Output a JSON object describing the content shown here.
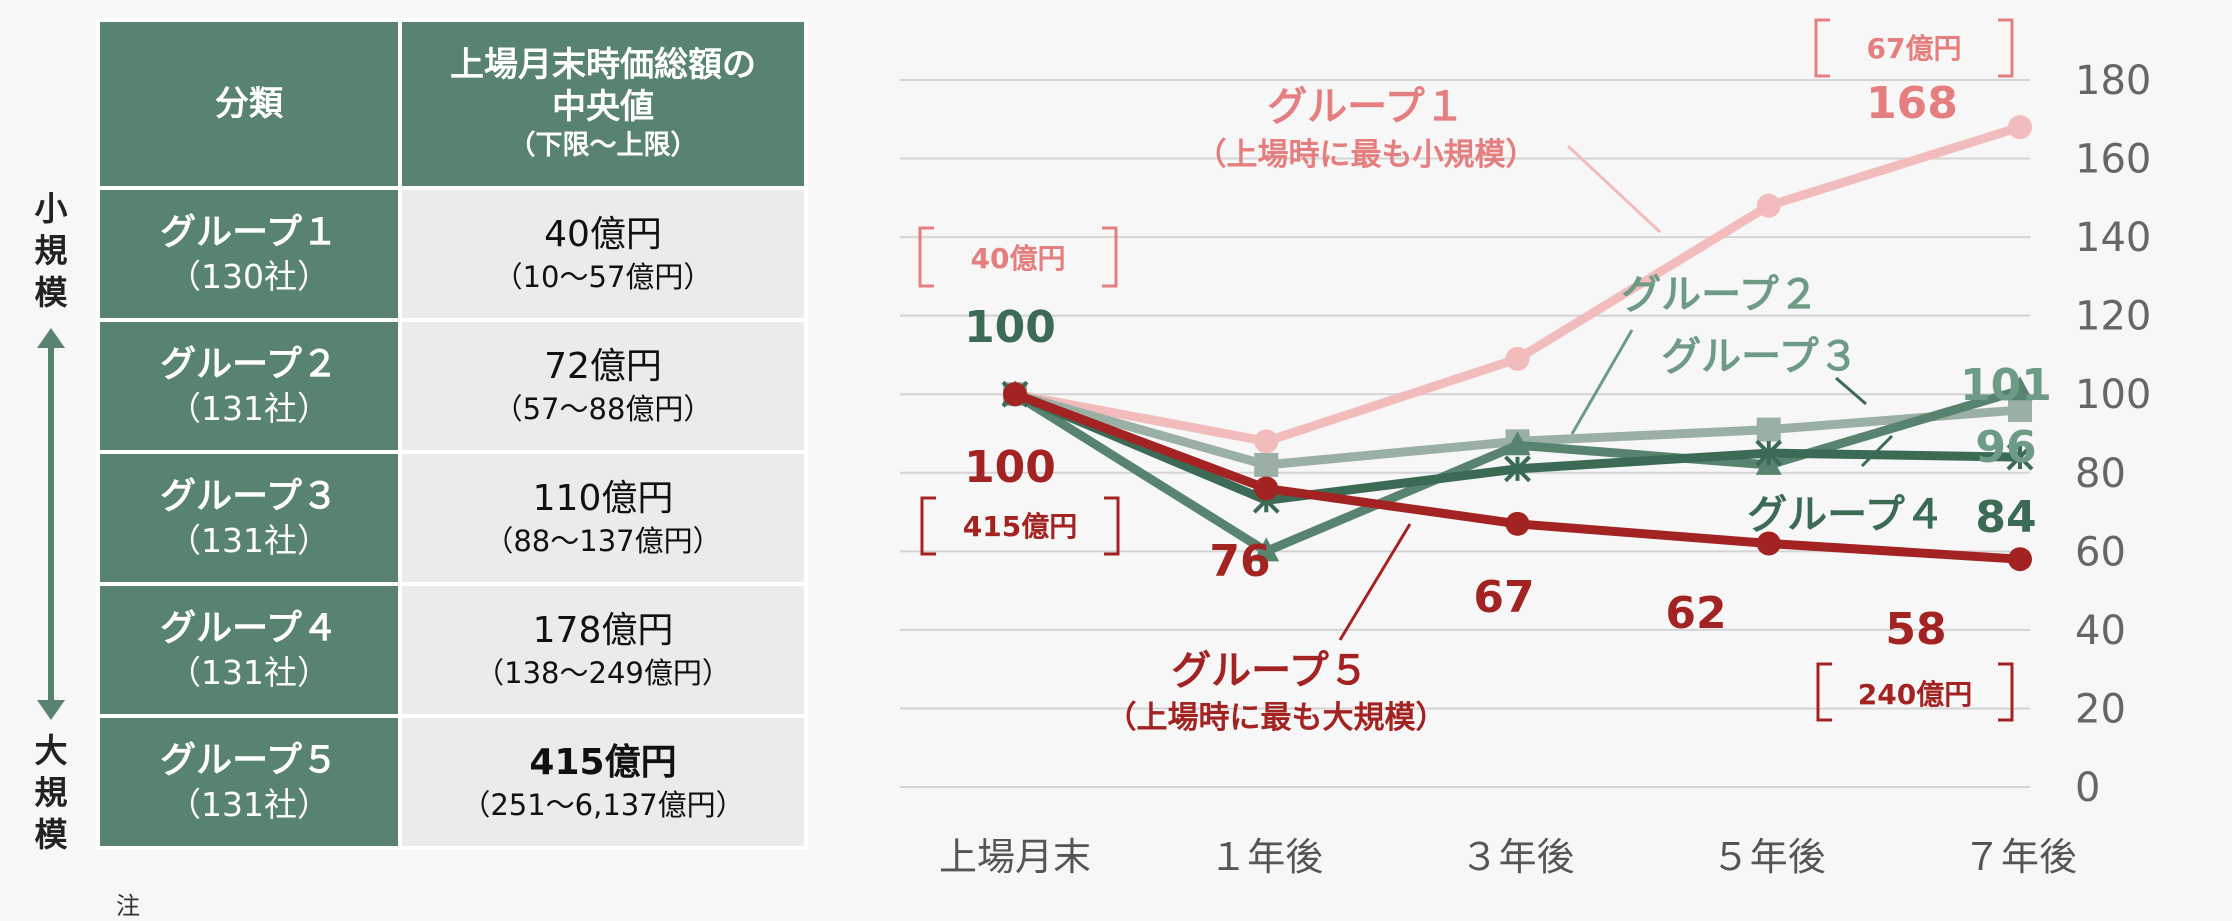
{
  "side_labels": {
    "top": [
      "小",
      "規",
      "模"
    ],
    "bottom": [
      "大",
      "規",
      "模"
    ]
  },
  "table": {
    "header": {
      "col1": "分類",
      "col2_lines": [
        "上場月末時価総額の",
        "中央値"
      ],
      "col2_sub": "（下限～上限）"
    },
    "rows": [
      {
        "group": "グループ１",
        "count": "（130社）",
        "value": "40億円",
        "range": "（10～57億円）",
        "bold": false
      },
      {
        "group": "グループ２",
        "count": "（131社）",
        "value": "72億円",
        "range": "（57～88億円）",
        "bold": false
      },
      {
        "group": "グループ３",
        "count": "（131社）",
        "value": "110億円",
        "range": "（88～137億円）",
        "bold": false
      },
      {
        "group": "グループ４",
        "count": "（131社）",
        "value": "178億円",
        "range": "（138～249億円）",
        "bold": false
      },
      {
        "group": "グループ５",
        "count": "（131社）",
        "value": "415億円",
        "range": "（251～6,137億円）",
        "bold": true
      }
    ]
  },
  "note": "注",
  "colors": {
    "table_green": "#58836e",
    "g1": "#f3bcbc",
    "g2": "#9bb0a5",
    "g3": "#58836e",
    "g4": "#3b6b55",
    "g5": "#a32322",
    "label_g1": "#e57e7e",
    "label_g2": "#6d9b85",
    "label_g4": "#3b6b55",
    "label_g5": "#a32322"
  },
  "chart_data": {
    "type": "line",
    "categories": [
      "上場月末",
      "１年後",
      "３年後",
      "５年後",
      "７年後"
    ],
    "ylim": [
      0,
      180
    ],
    "yticks": [
      0,
      20,
      40,
      60,
      80,
      100,
      120,
      140,
      160,
      180
    ],
    "y_axis_side": "right",
    "grid": true,
    "series": [
      {
        "name": "グループ１",
        "sublabel": "（上場時に最も小規模）",
        "values": [
          100,
          88,
          109,
          148,
          168
        ],
        "marker": "circle",
        "color_key": "g1",
        "end_label": "168",
        "start_cap": "40億円",
        "end_cap": "67億円"
      },
      {
        "name": "グループ２",
        "values": [
          100,
          82,
          88,
          91,
          96
        ],
        "marker": "square",
        "color_key": "g2",
        "end_label": "96"
      },
      {
        "name": "グループ３",
        "values": [
          100,
          60,
          87,
          82,
          101
        ],
        "marker": "triangle",
        "color_key": "g3",
        "end_label": "101"
      },
      {
        "name": "グループ４",
        "values": [
          100,
          73,
          81,
          85,
          84
        ],
        "marker": "asterisk",
        "color_key": "g4",
        "end_label": "84"
      },
      {
        "name": "グループ５",
        "sublabel": "（上場時に最も大規模）",
        "values": [
          100,
          76,
          67,
          62,
          58
        ],
        "marker": "circle",
        "color_key": "g5",
        "point_labels": [
          "100",
          "76",
          "67",
          "62",
          "58"
        ],
        "start_cap": "415億円",
        "end_cap": "240億円"
      }
    ],
    "start_label_top": "100",
    "annotations": {
      "g1_name": "グループ１",
      "g1_sub": "（上場時に最も小規模）",
      "g2_name": "グループ２",
      "g3_name": "グループ３",
      "g4_name": "グループ４",
      "g5_name": "グループ５",
      "g5_sub": "（上場時に最も大規模）"
    }
  }
}
